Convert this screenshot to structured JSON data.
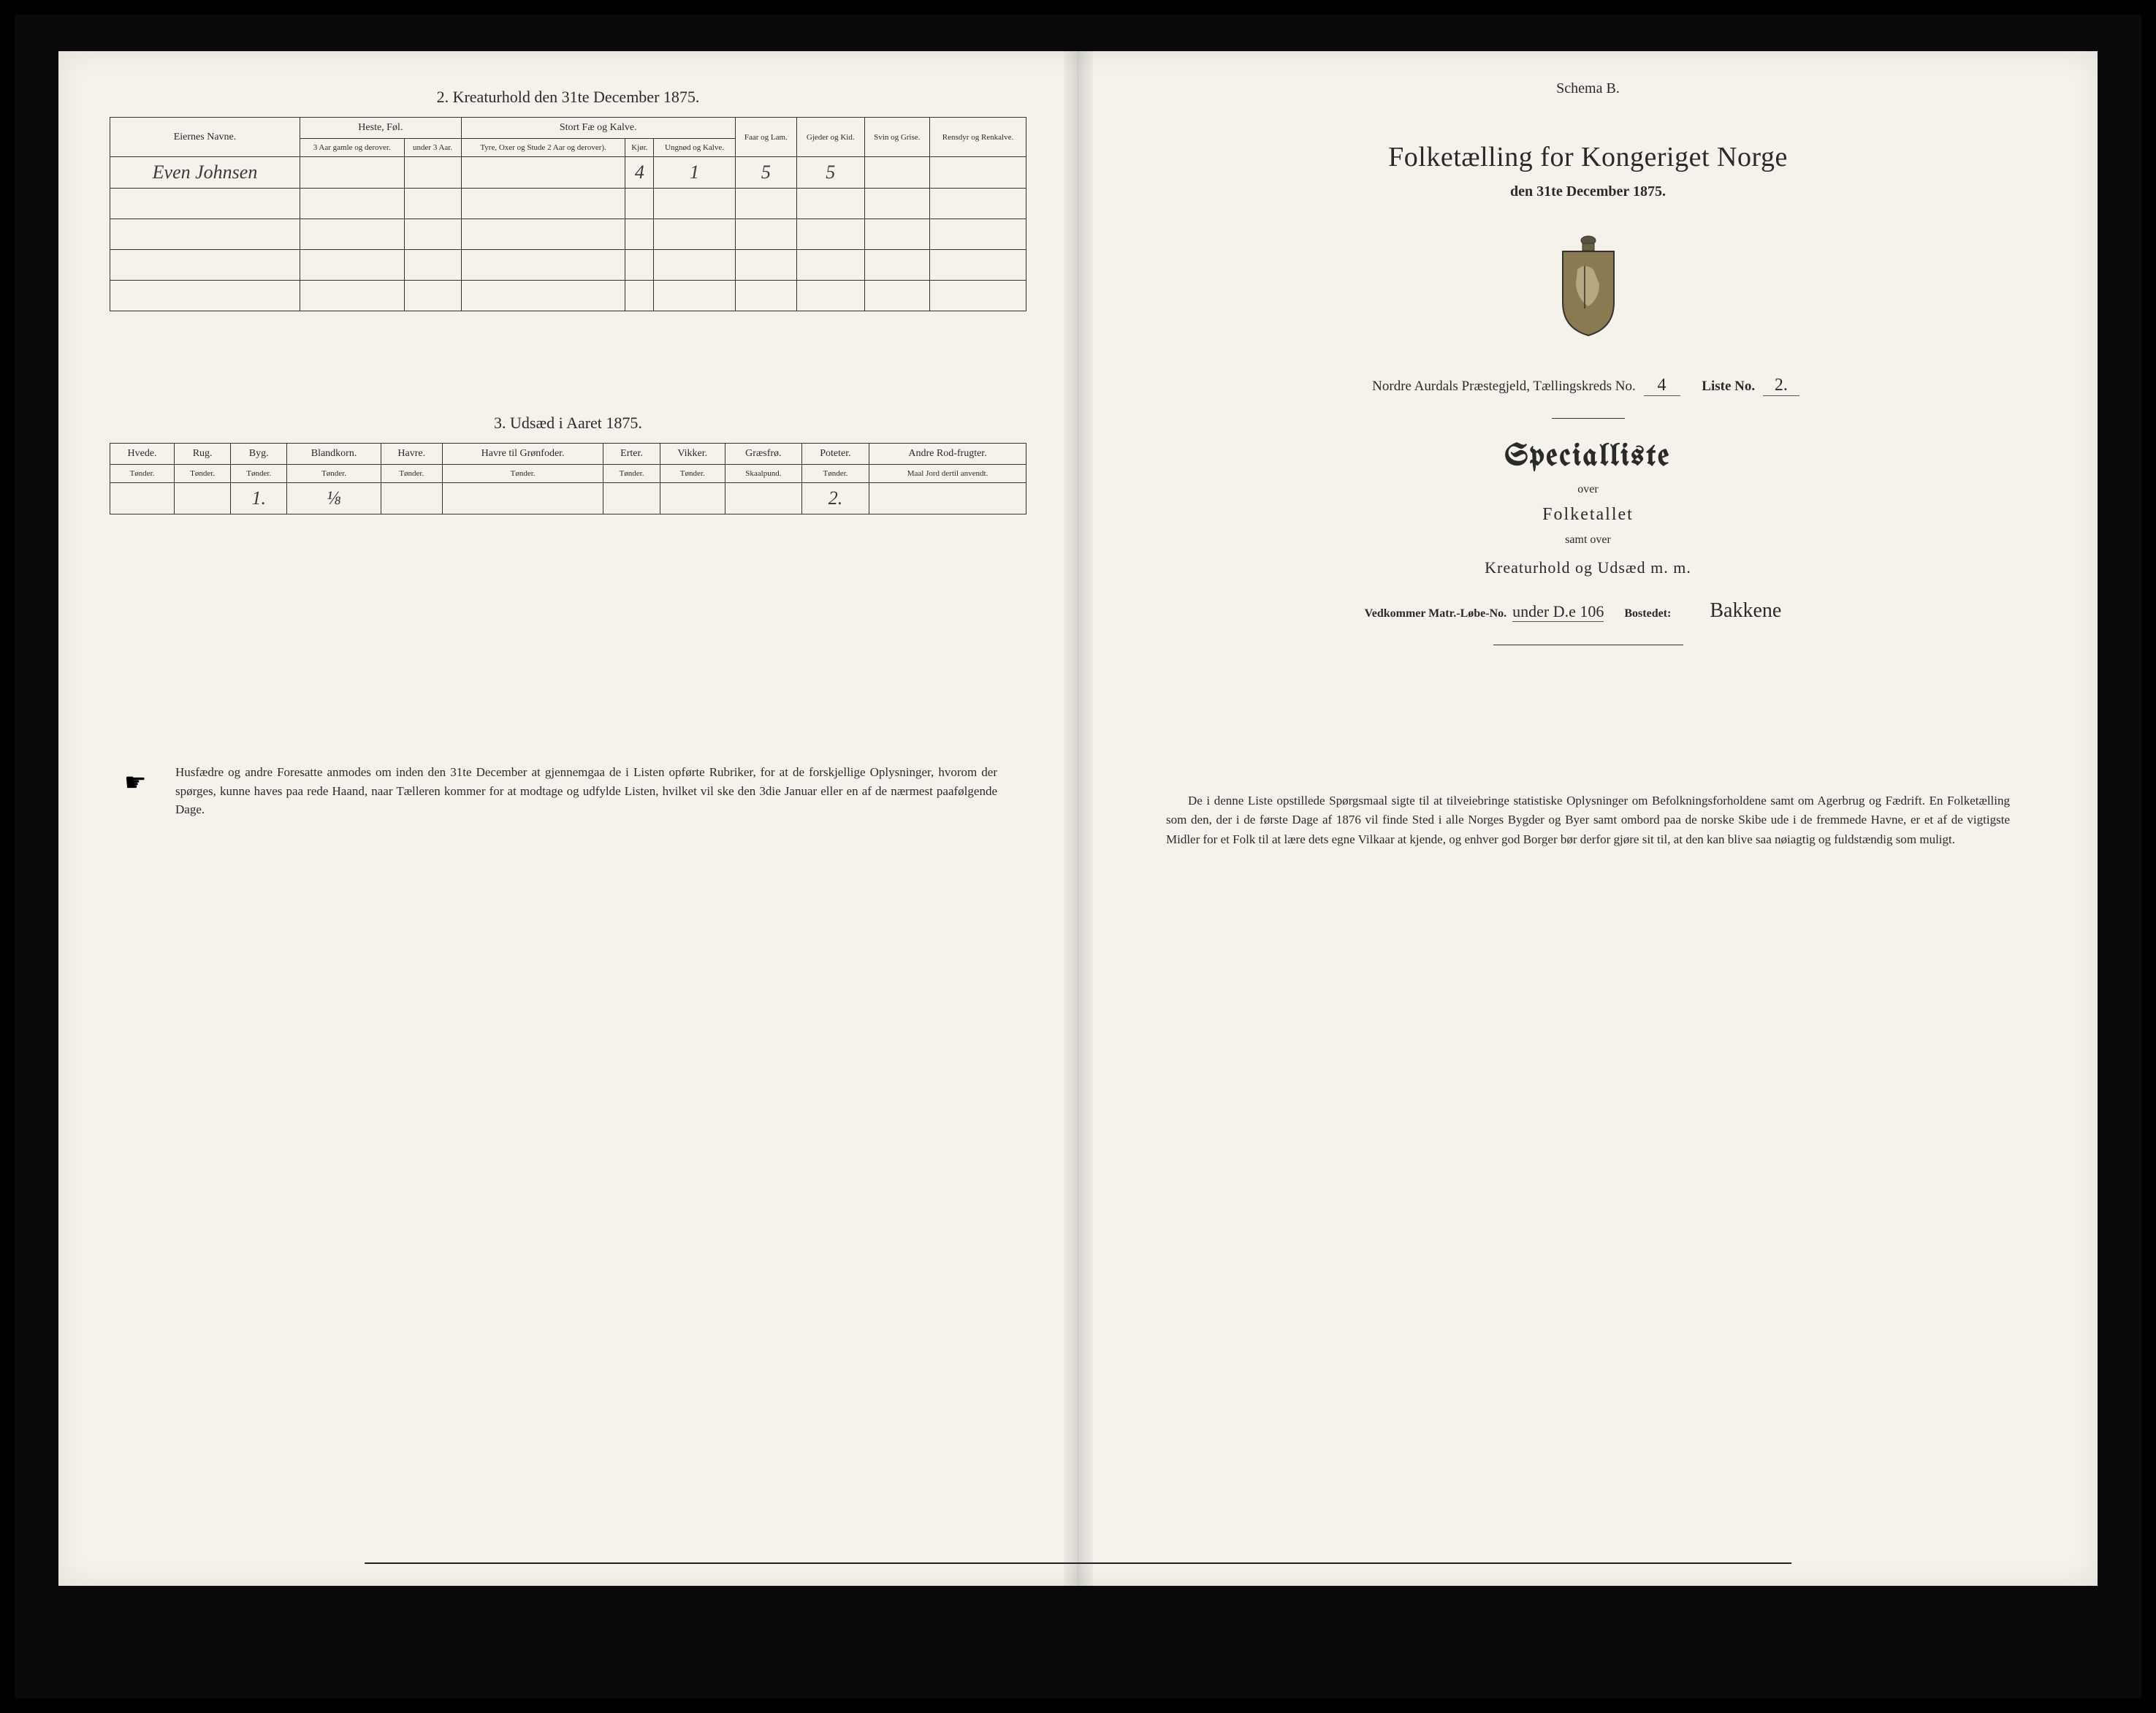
{
  "left": {
    "table2": {
      "title": "2.  Kreaturhold den 31te December 1875.",
      "cols": {
        "name": "Eiernes Navne.",
        "group_heste": "Heste, Føl.",
        "group_stort": "Stort Fæ og Kalve.",
        "heste_a": "3 Aar gamle og derover.",
        "heste_b": "under 3 Aar.",
        "stort_a": "Tyre, Oxer og Stude 2 Aar og derover).",
        "stort_b": "Kjør.",
        "stort_c": "Ungnød og Kalve.",
        "faar": "Faar og Lam.",
        "gjeder": "Gjeder og Kid.",
        "svin": "Svin og Grise.",
        "rensdyr": "Rensdyr og Renkalve."
      },
      "rows": [
        {
          "name": "Even Johnsen",
          "v": [
            "",
            "",
            "",
            "4",
            "1",
            "5",
            "5",
            "",
            ""
          ]
        },
        {
          "name": "",
          "v": [
            "",
            "",
            "",
            "",
            "",
            "",
            "",
            "",
            ""
          ]
        },
        {
          "name": "",
          "v": [
            "",
            "",
            "",
            "",
            "",
            "",
            "",
            "",
            ""
          ]
        },
        {
          "name": "",
          "v": [
            "",
            "",
            "",
            "",
            "",
            "",
            "",
            "",
            ""
          ]
        },
        {
          "name": "",
          "v": [
            "",
            "",
            "",
            "",
            "",
            "",
            "",
            "",
            ""
          ]
        }
      ]
    },
    "table3": {
      "title": "3.  Udsæd i Aaret 1875.",
      "cols": [
        "Hvede.",
        "Rug.",
        "Byg.",
        "Blandkorn.",
        "Havre.",
        "Havre til Grønfoder.",
        "Erter.",
        "Vikker.",
        "Græsfrø.",
        "Poteter.",
        "Andre Rod-frugter."
      ],
      "units": [
        "Tønder.",
        "Tønder.",
        "Tønder.",
        "Tønder.",
        "Tønder.",
        "Tønder.",
        "Tønder.",
        "Tønder.",
        "Skaalpund.",
        "Tønder.",
        "Maal Jord dertil anvendt."
      ],
      "row": [
        "",
        "",
        "1.",
        "⅛",
        "",
        "",
        "",
        "",
        "",
        "2.",
        ""
      ]
    },
    "footnote": "Husfædre og andre Foresatte anmodes om inden den 31te December at gjennemgaa de i Listen opførte Rubriker, for at de forskjellige Oplysninger, hvorom der spørges, kunne haves paa rede Haand, naar Tælleren kommer for at modtage og udfylde Listen, hvilket vil ske den 3die Januar eller en af de nærmest paafølgende Dage."
  },
  "right": {
    "schema": "Schema B.",
    "main_title": "Folketælling for Kongeriget Norge",
    "date_line": "den 31te December 1875.",
    "parish_prefix": "Nordre Aurdals Præstegjeld,  Tællingskreds No.",
    "kreds_no": "4",
    "liste_label": "Liste No.",
    "liste_no": "2.",
    "special": "Specialliste",
    "over1": "over",
    "folketallet": "Folketallet",
    "samt_over": "samt over",
    "kreat_line": "Kreaturhold og Udsæd m. m.",
    "matr_prefix": "Vedkommer Matr.-Løbe-No.",
    "matr_super": "under D.e 106",
    "bostedet_label": "Bostedet:",
    "bostedet": "Bakkene",
    "bottom": "De i denne Liste opstillede Spørgsmaal sigte til at tilveiebringe statistiske Oplysninger om Befolkningsforholdene samt om Agerbrug og Fædrift.  En Folketælling som den, der i de første Dage af 1876 vil finde Sted i alle Norges Bygder og Byer samt ombord paa de norske Skibe ude i de fremmede Havne, er et af de vigtigste Midler for et Folk til at lære dets egne Vilkaar at kjende, og enhver god Borger bør derfor gjøre sit til, at den kan blive saa nøiagtig og fuldstændig som muligt."
  },
  "colors": {
    "paper": "#f5f2ec",
    "ink": "#2a2a2a",
    "frame": "#000000"
  }
}
